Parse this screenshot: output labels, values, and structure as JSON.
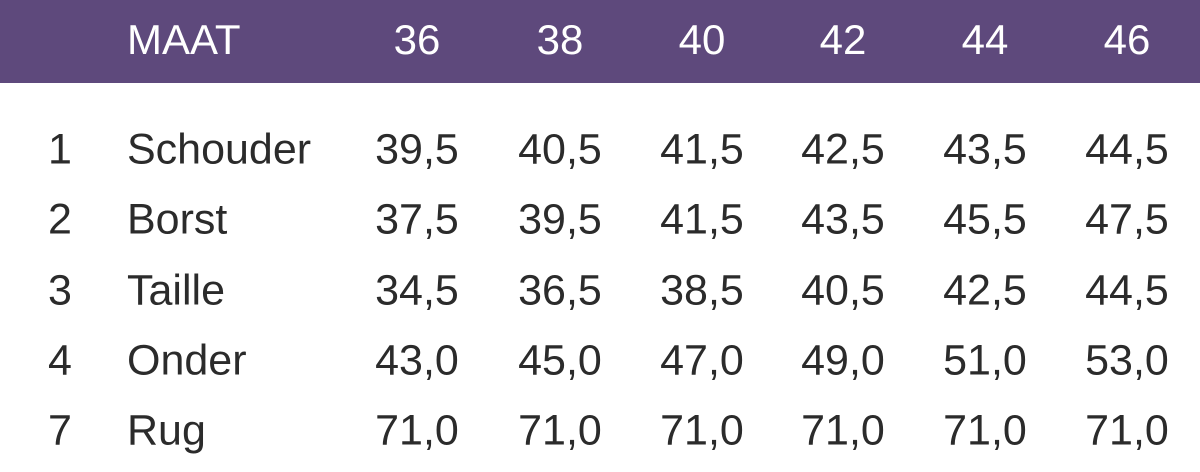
{
  "table": {
    "header": [
      "MAAT",
      "36",
      "38",
      "40",
      "42",
      "44",
      "46"
    ],
    "rows": [
      [
        "1",
        "Schouder",
        "39,5",
        "40,5",
        "41,5",
        "42,5",
        "43,5",
        "44,5"
      ],
      [
        "2",
        "Borst",
        "37,5",
        "39,5",
        "41,5",
        "43,5",
        "45,5",
        "47,5"
      ],
      [
        "3",
        "Taille",
        "34,5",
        "36,5",
        "38,5",
        "40,5",
        "42,5",
        "44,5"
      ],
      [
        "4",
        "Onder",
        "43,0",
        "45,0",
        "47,0",
        "49,0",
        "51,0",
        "53,0"
      ],
      [
        "7",
        "Rug",
        "71,0",
        "71,0",
        "71,0",
        "71,0",
        "71,0",
        "71,0"
      ]
    ]
  }
}
